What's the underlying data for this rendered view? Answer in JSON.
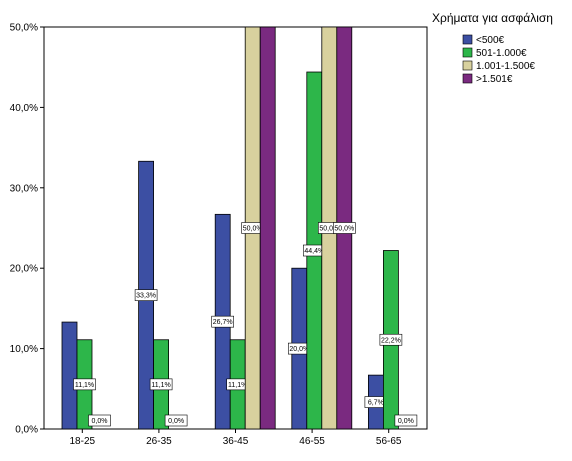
{
  "chart_data": {
    "type": "bar",
    "categories": [
      "18-25",
      "26-35",
      "36-45",
      "46-55",
      "56-65"
    ],
    "legend_title": "Χρήματα για ασφάλιση",
    "legend_position": "top-right",
    "ylim": [
      0,
      50
    ],
    "yticks": [
      "0,0%",
      "10,0%",
      "20,0%",
      "30,0%",
      "40,0%",
      "50,0%"
    ],
    "grid": false,
    "series": [
      {
        "name": "<500€",
        "color": "#3C4FA3",
        "values": [
          13.3,
          33.3,
          26.7,
          20.0,
          6.7
        ],
        "labels": [
          "",
          "33,3%",
          "26,7%",
          "20,0%",
          "6,7%"
        ]
      },
      {
        "name": "501-1.000€",
        "color": "#2DB64A",
        "values": [
          11.1,
          11.1,
          11.1,
          44.4,
          22.2
        ],
        "labels": [
          "11,1%",
          "11,1%",
          "11,1%",
          "44,4%",
          "22,2%"
        ]
      },
      {
        "name": "1.001-1.500€",
        "color": "#D8D19E",
        "values": [
          0.0,
          0.0,
          50.0,
          50.0,
          0.0
        ],
        "labels": [
          "0,0%",
          "0,0%",
          "50,0%",
          "50,0%",
          "0,0%"
        ]
      },
      {
        "name": ">1.501€",
        "color": "#7A2A80",
        "values": [
          0.0,
          0.0,
          50.0,
          50.0,
          0.0
        ],
        "labels": [
          "",
          "",
          "",
          "50,0%",
          ""
        ]
      }
    ]
  }
}
